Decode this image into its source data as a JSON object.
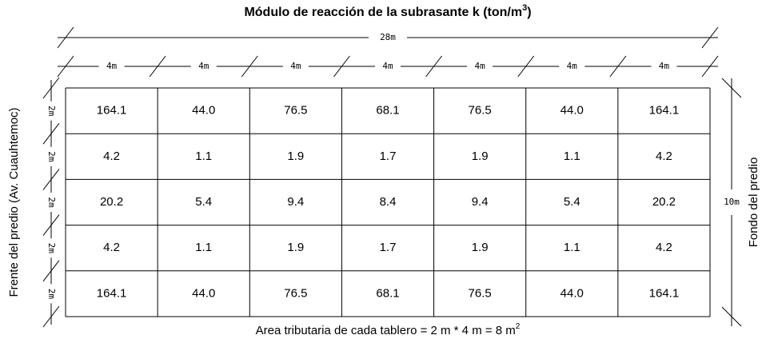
{
  "title": {
    "text": "Módulo de reacción de la subrasante k (ton/m",
    "sup": "3",
    "end": ")"
  },
  "dimensions": {
    "total_width": "28m",
    "column_widths": [
      "4m",
      "4m",
      "4m",
      "4m",
      "4m",
      "4m",
      "4m"
    ],
    "row_heights": [
      "2m",
      "2m",
      "2m",
      "2m",
      "2m"
    ],
    "total_depth": "10m"
  },
  "left_label": "Frente del predio (Av. Cuauhtemoc)",
  "right_label": "Fondo del predio",
  "table": {
    "rows": [
      [
        "164.1",
        "44.0",
        "76.5",
        "68.1",
        "76.5",
        "44.0",
        "164.1"
      ],
      [
        "4.2",
        "1.1",
        "1.9",
        "1.7",
        "1.9",
        "1.1",
        "4.2"
      ],
      [
        "20.2",
        "5.4",
        "9.4",
        "8.4",
        "9.4",
        "5.4",
        "20.2"
      ],
      [
        "4.2",
        "1.1",
        "1.9",
        "1.7",
        "1.9",
        "1.1",
        "4.2"
      ],
      [
        "164.1",
        "44.0",
        "76.5",
        "68.1",
        "76.5",
        "44.0",
        "164.1"
      ]
    ]
  },
  "footer": {
    "text": "Area tributaria de cada tablero = 2 m * 4 m = 8 m",
    "sup": "2"
  }
}
